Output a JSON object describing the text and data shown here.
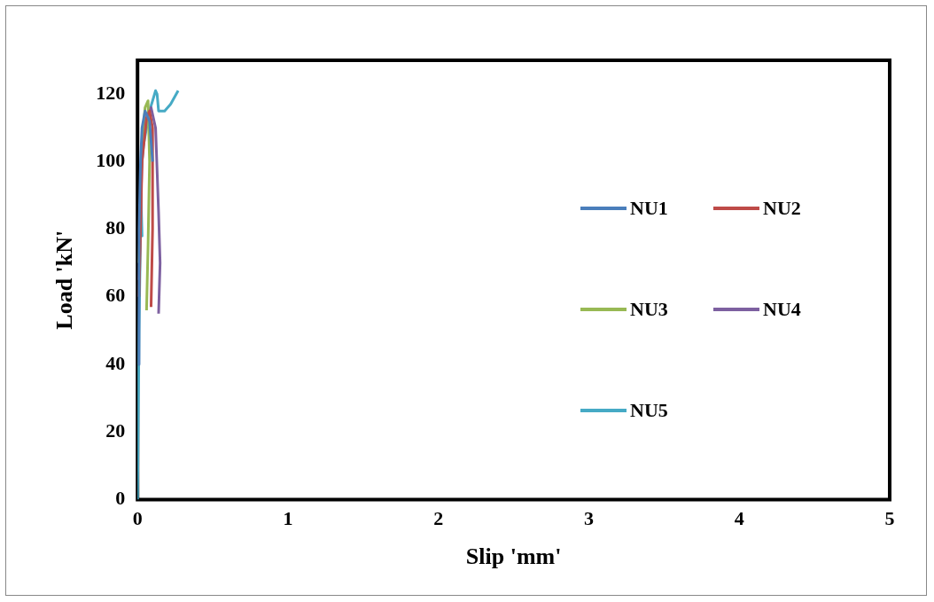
{
  "chart_data": {
    "type": "line",
    "xlabel": "Slip 'mm'",
    "ylabel": "Load 'kN'",
    "xlim": [
      0,
      5
    ],
    "xticks": [
      0,
      1,
      2,
      3,
      4,
      5
    ],
    "ylim": [
      0,
      130
    ],
    "yticks": [
      0,
      20,
      40,
      60,
      80,
      100,
      120
    ],
    "grid": false,
    "legend": "right",
    "marker": "none",
    "line_style": "solid",
    "series": [
      {
        "name": "NU1",
        "color": "#4a7ebb",
        "x": [
          0.005,
          0.01,
          0.02,
          0.03,
          0.05,
          0.08,
          0.1
        ],
        "values": [
          40,
          80,
          100,
          110,
          115,
          112,
          100
        ]
      },
      {
        "name": "NU2",
        "color": "#be4b48",
        "x": [
          0.01,
          0.03,
          0.06,
          0.08,
          0.1,
          0.1,
          0.09
        ],
        "values": [
          60,
          100,
          113,
          115,
          110,
          80,
          57
        ]
      },
      {
        "name": "NU3",
        "color": "#98b954",
        "x": [
          0.01,
          0.03,
          0.05,
          0.07,
          0.08,
          0.07,
          0.06
        ],
        "values": [
          70,
          105,
          116,
          118,
          100,
          75,
          56
        ]
      },
      {
        "name": "NU4",
        "color": "#7d60a0",
        "x": [
          0.01,
          0.03,
          0.06,
          0.09,
          0.12,
          0.14,
          0.15,
          0.14
        ],
        "values": [
          65,
          102,
          113,
          116,
          110,
          85,
          70,
          55
        ]
      },
      {
        "name": "NU5",
        "color": "#46aac5",
        "x": [
          0,
          0.01,
          0.02,
          0.03,
          0.02,
          0.04,
          0.08,
          0.12,
          0.13,
          0.14,
          0.18,
          0.22,
          0.27
        ],
        "values": [
          0,
          50,
          80,
          78,
          95,
          105,
          115,
          121,
          120,
          115,
          115,
          117,
          121
        ]
      }
    ]
  }
}
